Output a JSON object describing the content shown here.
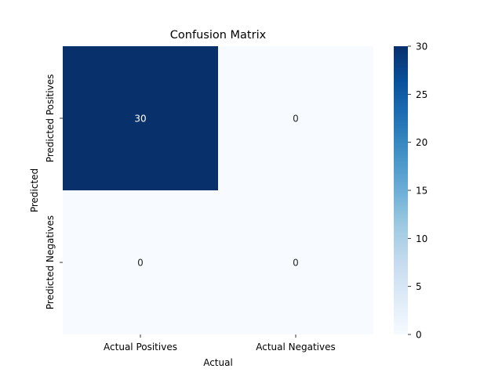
{
  "chart_data": {
    "type": "heatmap",
    "title": "Confusion Matrix",
    "xlabel": "Actual",
    "ylabel": "Predicted",
    "x_categories": [
      "Actual Positives",
      "Actual Negatives"
    ],
    "y_categories": [
      "Predicted Positives",
      "Predicted Negatives"
    ],
    "values": [
      [
        30,
        0
      ],
      [
        0,
        0
      ]
    ],
    "colormap": "Blues",
    "vmin": 0,
    "vmax": 30,
    "colorbar_ticks": [
      0,
      5,
      10,
      15,
      20,
      25,
      30
    ],
    "colors": {
      "low": "#f7fbff",
      "high": "#08306b"
    }
  }
}
